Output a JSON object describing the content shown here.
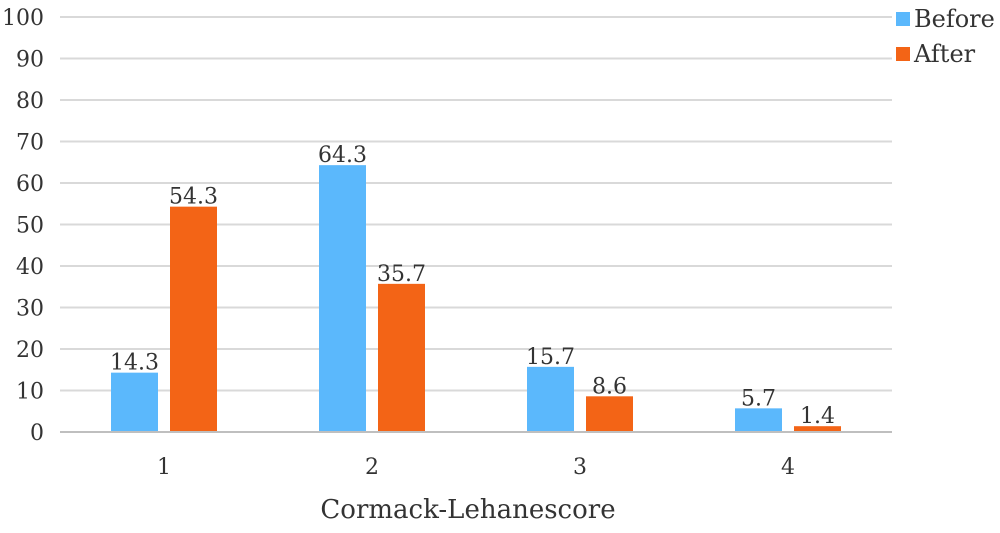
{
  "chart_data": {
    "type": "bar",
    "categories": [
      "1",
      "2",
      "3",
      "4"
    ],
    "series": [
      {
        "name": "Before",
        "values": [
          14.3,
          64.3,
          15.7,
          5.7
        ],
        "color": "#5BB8FC"
      },
      {
        "name": "After",
        "values": [
          54.3,
          35.7,
          8.6,
          1.4
        ],
        "color": "#F36416"
      }
    ],
    "data_labels": {
      "Before": [
        "14.3",
        "64.3",
        "15.7",
        "5.7"
      ],
      "After": [
        "54.3",
        "35.7",
        "8.6",
        "1.4"
      ]
    },
    "title": "",
    "xlabel": "Cormack-Lehanescore",
    "ylabel": "",
    "ylim": [
      0,
      100
    ],
    "yticks": [
      "0",
      "10",
      "20",
      "30",
      "40",
      "50",
      "60",
      "70",
      "80",
      "90",
      "100"
    ],
    "grid": true,
    "legend_position": "top-right",
    "gridline_color": "#D9D9D9",
    "axis_color": "#BFBFBF"
  }
}
